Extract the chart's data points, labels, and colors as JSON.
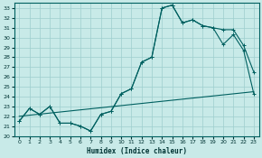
{
  "xlabel": "Humidex (Indice chaleur)",
  "bg_color": "#c8eae8",
  "grid_color": "#9ecece",
  "line_color": "#006060",
  "xlim": [
    -0.5,
    23.5
  ],
  "ylim": [
    20.0,
    33.5
  ],
  "xticks": [
    0,
    1,
    2,
    3,
    4,
    5,
    6,
    7,
    8,
    9,
    10,
    11,
    12,
    13,
    14,
    15,
    16,
    17,
    18,
    19,
    20,
    21,
    22,
    23
  ],
  "yticks": [
    20,
    21,
    22,
    23,
    24,
    25,
    26,
    27,
    28,
    29,
    30,
    31,
    32,
    33
  ],
  "series": [
    {
      "x": [
        0,
        1,
        2,
        3,
        4,
        5,
        6,
        7,
        8,
        9,
        10,
        11,
        12,
        13,
        14,
        15,
        16,
        17,
        18,
        19,
        20,
        21,
        22,
        23
      ],
      "y": [
        21.5,
        22.8,
        22.2,
        23.0,
        21.3,
        21.3,
        21.0,
        20.5,
        22.2,
        22.5,
        24.3,
        24.8,
        27.5,
        28.0,
        33.0,
        33.3,
        31.5,
        31.8,
        31.2,
        31.0,
        30.8,
        30.8,
        29.2,
        26.5
      ],
      "marker": "+"
    },
    {
      "x": [
        0,
        1,
        2,
        3,
        4,
        5,
        6,
        7,
        8,
        9,
        10,
        11,
        12,
        13,
        14,
        15,
        16,
        17,
        18,
        19,
        20,
        21,
        22,
        23
      ],
      "y": [
        21.5,
        22.8,
        22.2,
        23.0,
        21.3,
        21.3,
        21.0,
        20.5,
        22.2,
        22.5,
        24.3,
        24.8,
        27.5,
        28.0,
        33.0,
        33.3,
        31.5,
        31.8,
        31.2,
        31.0,
        29.3,
        30.3,
        28.7,
        24.3
      ],
      "marker": "+"
    },
    {
      "x": [
        0,
        23
      ],
      "y": [
        22.0,
        24.5
      ],
      "marker": null
    }
  ]
}
